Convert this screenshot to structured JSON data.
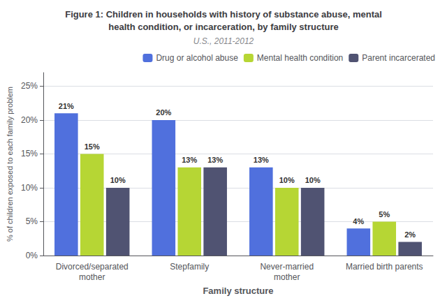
{
  "chart_data": {
    "type": "bar",
    "title": "Figure 1: Children in households with history of substance abuse, mental\nhealth condition, or incarceration, by family structure",
    "subtitle": "U.S., 2011-2012",
    "categories": [
      "Divorced/separated\nmother",
      "Stepfamily",
      "Never-married\nmother",
      "Married birth parents"
    ],
    "series": [
      {
        "name": "Drug or alcohol abuse",
        "values": [
          21,
          20,
          13,
          4
        ],
        "value_labels": [
          "21%",
          "20%",
          "13%",
          "4%"
        ]
      },
      {
        "name": "Mental health condition",
        "values": [
          15,
          13,
          10,
          5
        ],
        "value_labels": [
          "15%",
          "13%",
          "10%",
          "5%"
        ]
      },
      {
        "name": "Parent incarcerated",
        "values": [
          10,
          13,
          10,
          2
        ],
        "value_labels": [
          "10%",
          "13%",
          "10%",
          "2%"
        ]
      }
    ],
    "xlabel": "Family structure",
    "ylabel": "% of children exposed to each family problem",
    "ylim": [
      0,
      27
    ],
    "yticks": [
      {
        "value": 0,
        "label": "0%"
      },
      {
        "value": 5,
        "label": "5%"
      },
      {
        "value": 10,
        "label": "10%"
      },
      {
        "value": 15,
        "label": "15%"
      },
      {
        "value": 20,
        "label": "20%"
      },
      {
        "value": 25,
        "label": "25%"
      }
    ],
    "grid": true,
    "legend": "upper right",
    "data_labels": true
  }
}
